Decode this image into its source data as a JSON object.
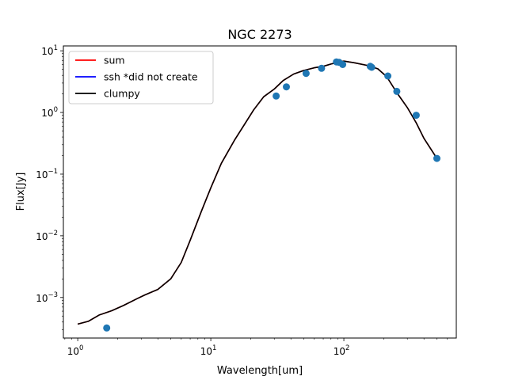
{
  "chart_data": {
    "type": "scatter",
    "title": "NGC 2273",
    "xlabel": "Wavelength[um]",
    "ylabel": "Flux[Jy]",
    "xscale": "log",
    "yscale": "log",
    "xlim": [
      0.78,
      700
    ],
    "ylim": [
      0.00022,
      12
    ],
    "x_ticks": [
      {
        "value": 1,
        "base": "10",
        "exp": "0"
      },
      {
        "value": 10,
        "base": "10",
        "exp": "1"
      },
      {
        "value": 100,
        "base": "10",
        "exp": "2"
      }
    ],
    "y_ticks": [
      {
        "value": 0.001,
        "base": "10",
        "exp": "−3"
      },
      {
        "value": 0.01,
        "base": "10",
        "exp": "−2"
      },
      {
        "value": 0.1,
        "base": "10",
        "exp": "−1"
      },
      {
        "value": 1,
        "base": "10",
        "exp": "0"
      },
      {
        "value": 10,
        "base": "10",
        "exp": "1"
      }
    ],
    "legend_position": "top-left",
    "series": [
      {
        "name": "sum",
        "kind": "line",
        "color": "#ff0000",
        "x": [
          1,
          1.2,
          1.45,
          1.8,
          2.2,
          2.8,
          3.2,
          4,
          5,
          6,
          7,
          8.5,
          10,
          12,
          15,
          18,
          21,
          25,
          30,
          35,
          42,
          50,
          60,
          70,
          80,
          90,
          100,
          120,
          150,
          180,
          210,
          250,
          300,
          350,
          400,
          500
        ],
        "y": [
          0.00037,
          0.00041,
          0.00052,
          0.00061,
          0.00074,
          0.00096,
          0.0011,
          0.00135,
          0.002,
          0.0037,
          0.0085,
          0.025,
          0.06,
          0.15,
          0.35,
          0.65,
          1.1,
          1.8,
          2.4,
          3.3,
          4.2,
          4.8,
          5.3,
          5.6,
          6.1,
          6.5,
          6.8,
          6.4,
          5.8,
          5.1,
          3.8,
          2.1,
          1.2,
          0.68,
          0.38,
          0.18
        ]
      },
      {
        "name": "ssh *did not create",
        "kind": "line",
        "color": "#0000ff",
        "x": [],
        "y": []
      },
      {
        "name": "clumpy",
        "kind": "line",
        "color": "#000000",
        "x": [
          1,
          1.2,
          1.45,
          1.8,
          2.2,
          2.8,
          3.2,
          4,
          5,
          6,
          7,
          8.5,
          10,
          12,
          15,
          18,
          21,
          25,
          30,
          35,
          42,
          50,
          60,
          70,
          80,
          90,
          100,
          120,
          150,
          180,
          210,
          250,
          300,
          350,
          400,
          500
        ],
        "y": [
          0.00037,
          0.00041,
          0.00052,
          0.00061,
          0.00074,
          0.00096,
          0.0011,
          0.00135,
          0.002,
          0.0037,
          0.0085,
          0.025,
          0.06,
          0.15,
          0.35,
          0.65,
          1.1,
          1.8,
          2.4,
          3.3,
          4.2,
          4.8,
          5.3,
          5.6,
          6.1,
          6.5,
          6.8,
          6.4,
          5.8,
          5.1,
          3.8,
          2.1,
          1.2,
          0.68,
          0.38,
          0.18
        ]
      },
      {
        "name": "",
        "kind": "points",
        "color": "#1f77b4",
        "x": [
          1.65,
          31,
          37,
          52,
          68,
          88,
          92,
          98,
          158,
          162,
          214,
          250,
          350,
          500
        ],
        "y": [
          0.00032,
          1.85,
          2.6,
          4.3,
          5.2,
          6.6,
          6.5,
          6.0,
          5.6,
          5.4,
          3.9,
          2.2,
          0.9,
          0.18
        ]
      }
    ]
  }
}
